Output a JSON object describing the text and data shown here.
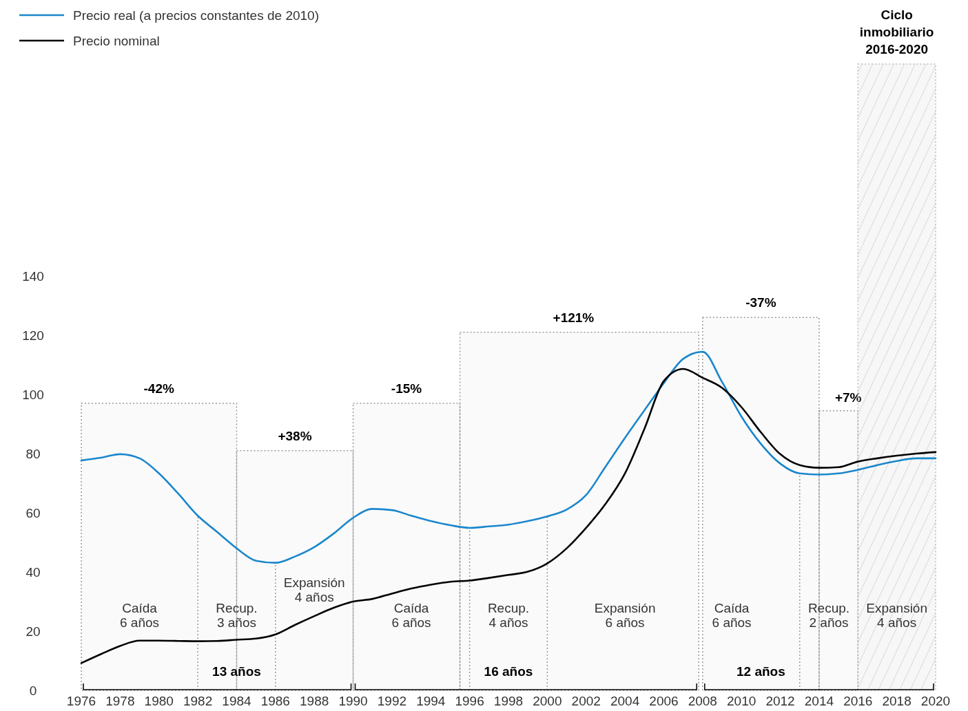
{
  "chart_data": {
    "type": "line",
    "x": [
      1976,
      1977,
      1978,
      1979,
      1980,
      1981,
      1982,
      1983,
      1984,
      1985,
      1986,
      1987,
      1988,
      1989,
      1990,
      1991,
      1992,
      1993,
      1994,
      1995,
      1996,
      1997,
      1998,
      1999,
      2000,
      2001,
      2002,
      2003,
      2004,
      2005,
      2006,
      2007,
      2008,
      2009,
      2010,
      2011,
      2012,
      2013,
      2014,
      2015,
      2016,
      2017,
      2018,
      2019,
      2020
    ],
    "series": [
      {
        "name": "Precio real (a precios constantes de 2010)",
        "color": "#1a87cc",
        "values": [
          77.7,
          78.6,
          79.8,
          78.4,
          73.3,
          66.4,
          59,
          53.5,
          48,
          43.8,
          43.1,
          45.2,
          48.4,
          53,
          58.3,
          61.3,
          60.9,
          59,
          57.2,
          55.8,
          54.9,
          55.4,
          56,
          57.2,
          58.8,
          61.1,
          66,
          75.6,
          85.3,
          94.6,
          103.8,
          112,
          114.4,
          104.2,
          92.5,
          83.3,
          76.6,
          73.3,
          72.9,
          73.3,
          74.5,
          76.1,
          77.5,
          78.4,
          78.4
        ]
      },
      {
        "name": "Precio nominal",
        "color": "#000000",
        "values": [
          9.2,
          12.2,
          15,
          16.8,
          16.8,
          16.7,
          16.6,
          16.7,
          17.1,
          17.5,
          18.9,
          22.1,
          25.1,
          27.9,
          30,
          30.9,
          32.7,
          34.4,
          35.7,
          36.7,
          37.1,
          38,
          39,
          40.1,
          42.9,
          48,
          54.9,
          63,
          73.3,
          88.3,
          104.5,
          108.6,
          105.6,
          102.2,
          95.7,
          87.2,
          79.8,
          76.1,
          75.2,
          75.4,
          77.3,
          78.4,
          79.3,
          80,
          80.5
        ]
      }
    ],
    "xlim": [
      1976,
      2020
    ],
    "xticks": [
      1976,
      1978,
      1980,
      1982,
      1984,
      1986,
      1988,
      1990,
      1992,
      1994,
      1996,
      1998,
      2000,
      2002,
      2004,
      2006,
      2008,
      2010,
      2012,
      2014,
      2016,
      2018,
      2020
    ],
    "ylim": [
      0,
      140
    ],
    "yticks": [
      0,
      20,
      40,
      60,
      80,
      100,
      120,
      140
    ],
    "legend": "top left",
    "line_style": "solid",
    "annotations": [
      "Caída 6 años",
      "Recup. 3 años",
      "Expansión 4 años",
      "Caída 6 años",
      "Recup. 4 años",
      "Expansión 6 años",
      "Caída 6 años",
      "Recup. 2 años",
      "Expansión 4 años",
      "13 años",
      "16 años",
      "12 años"
    ],
    "ref_lines": [
      {
        "axis": "x",
        "value": 1982,
        "color": "#999999",
        "line_style": "dotted"
      },
      {
        "axis": "x",
        "value": 1986,
        "color": "#999999",
        "line_style": "dotted"
      },
      {
        "axis": "x",
        "value": 1996,
        "color": "#999999",
        "line_style": "dotted"
      },
      {
        "axis": "x",
        "value": 2000,
        "color": "#999999",
        "line_style": "dotted"
      },
      {
        "axis": "x",
        "value": 2013,
        "color": "#999999",
        "line_style": "dotted"
      }
    ],
    "bands": [
      {
        "axis": "x",
        "from": 1976,
        "to": 1984,
        "label": "-42%",
        "color": "#999999"
      },
      {
        "axis": "x",
        "from": 1984,
        "to": 1990,
        "label": "+38%",
        "color": "#999999"
      },
      {
        "axis": "x",
        "from": 1990,
        "to": 1995.5,
        "label": "-15%",
        "color": "#999999"
      },
      {
        "axis": "x",
        "from": 1995.5,
        "to": 2007.8,
        "label": "+121%",
        "color": "#999999"
      },
      {
        "axis": "x",
        "from": 2008,
        "to": 2014,
        "label": "-37%",
        "color": "#999999"
      },
      {
        "axis": "x",
        "from": 2014,
        "to": 2016,
        "label": "+7%",
        "color": "#999999"
      },
      {
        "axis": "x",
        "from": 2016,
        "to": 2020,
        "label": "Ciclo inmobiliario 2016-2020",
        "color": "#bbbbbb"
      }
    ]
  }
}
